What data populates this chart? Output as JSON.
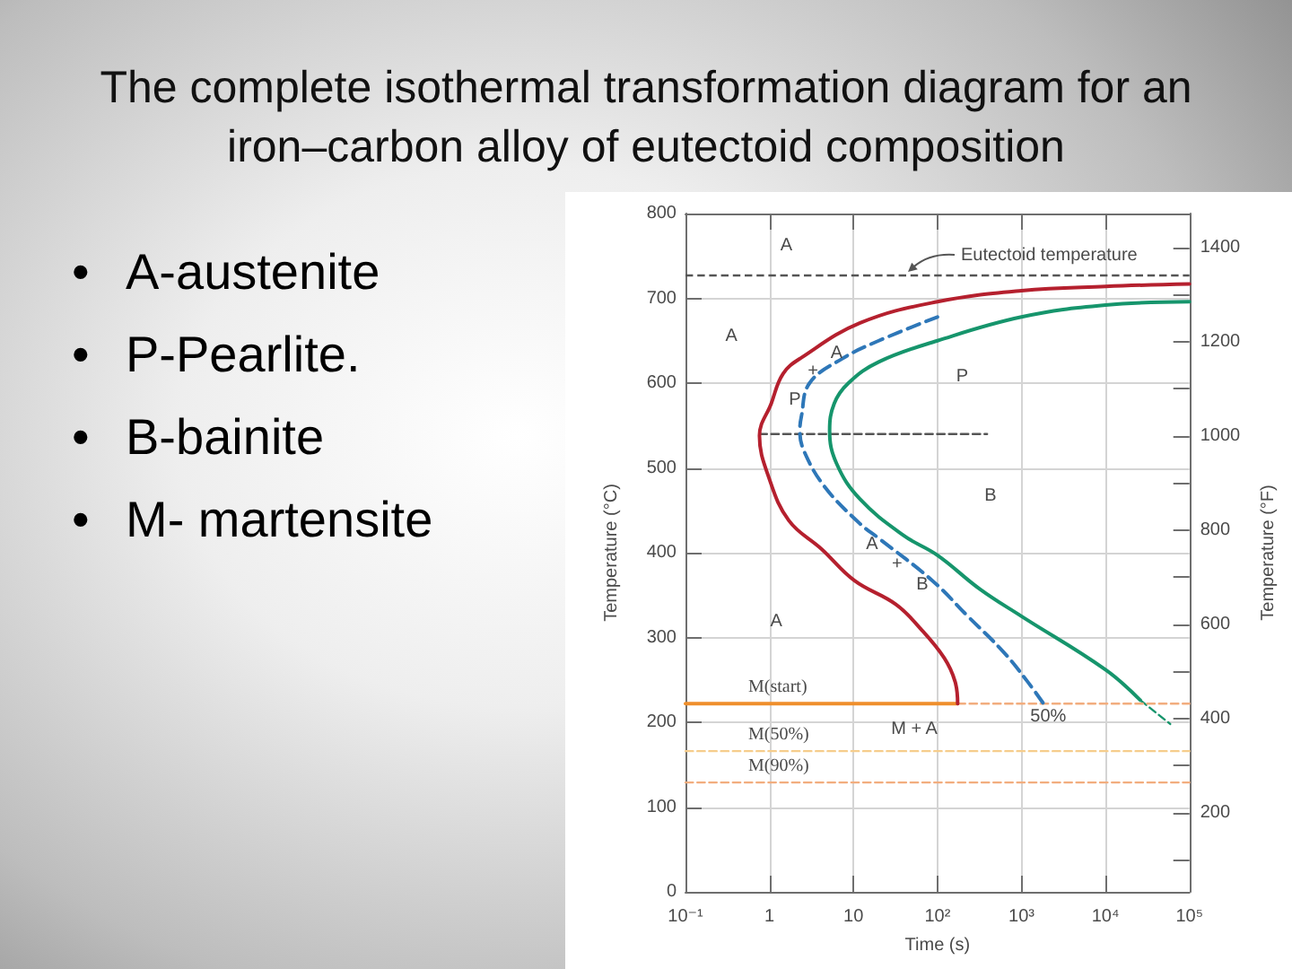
{
  "chart_data": [
    {
      "type": "line",
      "title": "The complete isothermal transformation diagram for an iron–carbon alloy of eutectoid composition",
      "xlabel": "Time (s)",
      "ylabel": "Temperature (°C)",
      "y2label": "Temperature (°F)",
      "log": "x",
      "grid": true,
      "marker": "none",
      "xlim": [
        0.1,
        100000
      ],
      "xticks": [
        {
          "value": 0.1,
          "label": "10⁻¹"
        },
        1,
        10,
        {
          "value": 100,
          "label": "10²"
        },
        {
          "value": 1000,
          "label": "10³"
        },
        {
          "value": 10000,
          "label": "10⁴"
        },
        {
          "value": 100000,
          "label": "10⁵"
        }
      ],
      "ylim": [
        0,
        800
      ],
      "yticks": [
        0,
        100,
        200,
        300,
        400,
        500,
        600,
        700,
        800
      ],
      "y2lim": [
        32,
        1472
      ],
      "y2ticks": [
        {
          "value": 100,
          "label": null
        },
        200,
        {
          "value": 300,
          "label": null
        },
        400,
        {
          "value": 500,
          "label": null
        },
        600,
        {
          "value": 700,
          "label": null
        },
        800,
        {
          "value": 900,
          "label": null
        },
        1000,
        {
          "value": 1100,
          "label": null
        },
        1200,
        {
          "value": 1300,
          "label": null
        },
        1400
      ],
      "series": [
        {
          "color": "#b5202e",
          "x": [
            100000,
            10000,
            1000,
            100,
            12,
            2.4,
            1.45,
            1.05,
            0.76,
            0.98,
            1.7,
            4.2,
            10.3,
            32,
            62,
            120,
            162,
            174
          ],
          "values": [
            717,
            714,
            709,
            696,
            671,
            630,
            611,
            576,
            538,
            489,
            438,
            404,
            367,
            339,
            311,
            276,
            248,
            222
          ]
        },
        {
          "name": "50%",
          "color": "#2e77b8",
          "line_style": "dashed",
          "x": [
            1800,
            1180,
            610,
            230,
            87,
            20,
            12,
            4.6,
            2.6,
            2.3,
            2.4,
            3.0,
            7.4,
            20,
            100
          ],
          "values": [
            223,
            248,
            283,
            325,
            367,
            417,
            434,
            477,
            519,
            544,
            561,
            600,
            629,
            650,
            678
          ]
        },
        {
          "color": "#16956c",
          "x": [
            100000,
            10000,
            1000,
            100,
            20,
            8.7,
            5.9,
            5.2,
            6.3,
            12,
            40,
            100,
            320,
            1000,
            10000,
            26000
          ],
          "values": [
            696,
            692,
            678,
            650,
            625,
            600,
            576,
            544,
            505,
            463,
            420,
            397,
            357,
            325,
            262,
            226
          ]
        },
        {
          "color": "#16956c",
          "line_style": "dashed",
          "x": [
            26000,
            59000
          ],
          "values": [
            226,
            198
          ]
        },
        {
          "name": "M(start)",
          "color": "#ef8f2c",
          "x": [
            0.1,
            174
          ],
          "values": [
            222,
            222
          ]
        },
        {
          "color": "#f2ad7e",
          "line_style": "dashed",
          "x": [
            174,
            100000
          ],
          "values": [
            222,
            222
          ]
        },
        {
          "name": "M(50%)",
          "color": "#f6cd8c",
          "line_style": "dashed",
          "x": [
            0.1,
            100000
          ],
          "values": [
            166,
            166
          ]
        },
        {
          "name": "M(90%)",
          "color": "#f2ad7e",
          "line_style": "dashed",
          "x": [
            0.1,
            100000
          ],
          "values": [
            129,
            129
          ]
        },
        {
          "color": "#555555",
          "line_style": "dashed",
          "x": [
            0.76,
            390
          ],
          "values": [
            540,
            540
          ]
        }
      ],
      "ref_lines": [
        {
          "axis": "y",
          "value": 727,
          "label": "Eutectoid temperature",
          "color": "#555555",
          "line_style": "dashed"
        }
      ],
      "annotations": [
        "A",
        "A",
        "P",
        "B",
        "A",
        "M + A",
        {
          "text": "A",
          "x": 6.3,
          "y": 635
        },
        {
          "text": "+",
          "x": 3.3,
          "y": 614
        },
        {
          "text": "P",
          "x": 2.0,
          "y": 580
        },
        {
          "text": "A",
          "x": 16.6,
          "y": 409
        },
        {
          "text": "+",
          "x": 33,
          "y": 386
        },
        {
          "text": "B",
          "x": 66,
          "y": 362
        }
      ]
    },
    {
      "type": "other",
      "annotations": [
        "• A-austenite",
        "• P-Pearlite.",
        "• B-bainite",
        "• M- martensite"
      ]
    }
  ]
}
